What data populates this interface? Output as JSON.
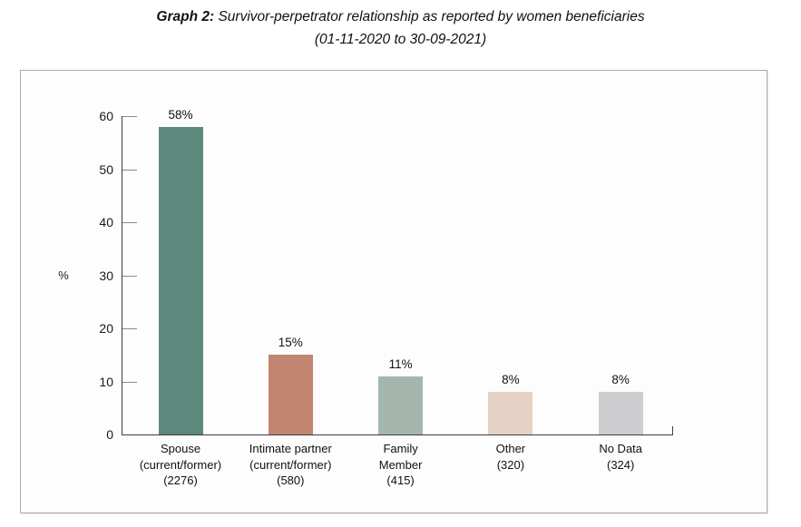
{
  "title": {
    "prefix": "Graph 2:",
    "rest": " Survivor-perpetrator relationship as reported by women beneficiaries",
    "subtitle": "(01-11-2020 to 30-09-2021)"
  },
  "chart_data": {
    "type": "bar",
    "title": "Graph 2: Survivor-perpetrator relationship as reported by women beneficiaries (01-11-2020 to 30-09-2021)",
    "xlabel": "",
    "ylabel": "%",
    "ylim": [
      0,
      60
    ],
    "yticks": [
      0,
      10,
      20,
      30,
      40,
      50,
      60
    ],
    "grid": false,
    "legend": "none",
    "categories": [
      "Spouse (current/former) (2276)",
      "Intimate partner (current/former) (580)",
      "Family Member (415)",
      "Other (320)",
      "No Data (324)"
    ],
    "category_lines": [
      [
        "Spouse",
        "(current/former)",
        "(2276)"
      ],
      [
        "Intimate partner",
        "(current/former)",
        "(580)"
      ],
      [
        "Family",
        "Member",
        "(415)"
      ],
      [
        "Other",
        "(320)"
      ],
      [
        "No Data",
        "(324)"
      ]
    ],
    "values": [
      58,
      15,
      11,
      8,
      8
    ],
    "value_labels": [
      "58%",
      "15%",
      "11%",
      "8%",
      "8%"
    ],
    "counts": [
      2276,
      580,
      415,
      320,
      324
    ],
    "bar_colors": [
      "#5d897c",
      "#c28570",
      "#a5b6ae",
      "#e5d1c3",
      "#cdccce"
    ]
  }
}
